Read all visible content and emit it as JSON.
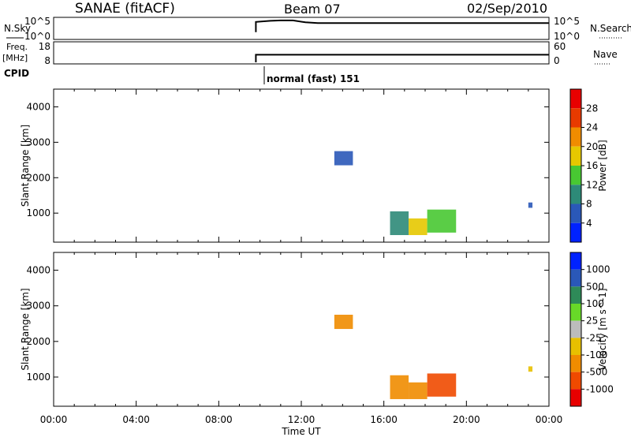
{
  "header": {
    "station": "SANAE (fitACF)",
    "beam": "Beam 07",
    "date": "02/Sep/2010"
  },
  "strips": {
    "nsky_label": "N.Sky",
    "nsky_ticks": [
      "10^5",
      "10^0"
    ],
    "nsearch_label": "N.Search",
    "nsearch_ticks": [
      "10^5",
      "10^0"
    ],
    "freq_label_1": "Freq.",
    "freq_label_2": "[MHz]",
    "freq_ticks": [
      "18",
      "8"
    ],
    "nave_label": "Nave",
    "nave_ticks": [
      "60",
      "0"
    ],
    "cpid_label": "CPID",
    "cpid_value": "normal (fast) 151"
  },
  "x_axis": {
    "label": "Time UT",
    "ticks": [
      "00:00",
      "04:00",
      "08:00",
      "12:00",
      "16:00",
      "20:00",
      "00:00"
    ]
  },
  "colors": {
    "power": [
      "#0022ff",
      "#2a58b8",
      "#2d8a78",
      "#48c832",
      "#e6c800",
      "#f08c00",
      "#e83a00",
      "#e80000"
    ],
    "velocity": [
      "#e80000",
      "#f04a00",
      "#f08c00",
      "#e8c000",
      "#bcbcbc",
      "#68d828",
      "#2e8a58",
      "#2a58b8",
      "#0022ff"
    ]
  },
  "chart_data": [
    {
      "type": "line",
      "title": "N.Sky",
      "x_unit": "hours UT",
      "series": [
        {
          "x": [
            0,
            9.8,
            9.8,
            10.5,
            11.0,
            11.6,
            12.2,
            12.8,
            13.5,
            16,
            20,
            24
          ],
          "y": [
            null,
            1.5,
            4.2,
            4.5,
            4.6,
            4.6,
            4.1,
            3.9,
            3.9,
            3.9,
            3.9,
            3.9
          ]
        }
      ]
    },
    {
      "type": "line",
      "title": "Freq. [MHz]",
      "x_unit": "hours UT",
      "series": [
        {
          "x": [
            0,
            9.8,
            9.8,
            24
          ],
          "y": [
            null,
            8,
            12,
            12
          ]
        }
      ]
    },
    {
      "type": "heatmap",
      "ylabel": "Slant Range [km]",
      "yticks": [
        1000,
        2000,
        3000,
        4000
      ],
      "ylim": [
        180,
        4500
      ],
      "xlim": [
        0,
        24
      ],
      "colorbar": {
        "label": "Power [dB]",
        "ticks": [
          "4",
          "8",
          "12",
          "16",
          "20",
          "24",
          "28"
        ]
      },
      "regions": [
        {
          "t0": 13.6,
          "t1": 14.5,
          "r0": 2350,
          "r1": 2750,
          "level": 1
        },
        {
          "t0": 16.3,
          "t1": 17.2,
          "r0": 380,
          "r1": 1050,
          "level": 2
        },
        {
          "t0": 17.2,
          "t1": 18.1,
          "r0": 380,
          "r1": 850,
          "level": 4
        },
        {
          "t0": 18.1,
          "t1": 19.5,
          "r0": 450,
          "r1": 1100,
          "level": 3
        },
        {
          "t0": 23.0,
          "t1": 23.2,
          "r0": 1150,
          "r1": 1300,
          "level": 1
        }
      ]
    },
    {
      "type": "heatmap",
      "ylabel": "Slant Range [km]",
      "yticks": [
        1000,
        2000,
        3000,
        4000
      ],
      "ylim": [
        180,
        4500
      ],
      "xlim": [
        0,
        24
      ],
      "colorbar": {
        "label": "Velocity [m s^-1]",
        "ticks": [
          "1000",
          "500",
          "100",
          "25",
          "-25",
          "-100",
          "-500",
          "-1000"
        ]
      },
      "regions": [
        {
          "t0": 13.6,
          "t1": 14.5,
          "r0": 2350,
          "r1": 2750,
          "level": 2
        },
        {
          "t0": 16.3,
          "t1": 17.2,
          "r0": 380,
          "r1": 1050,
          "level": 2
        },
        {
          "t0": 17.2,
          "t1": 18.1,
          "r0": 380,
          "r1": 850,
          "level": 2
        },
        {
          "t0": 18.1,
          "t1": 19.5,
          "r0": 450,
          "r1": 1100,
          "level": 1
        },
        {
          "t0": 23.0,
          "t1": 23.2,
          "r0": 1150,
          "r1": 1300,
          "level": 3
        }
      ]
    }
  ]
}
